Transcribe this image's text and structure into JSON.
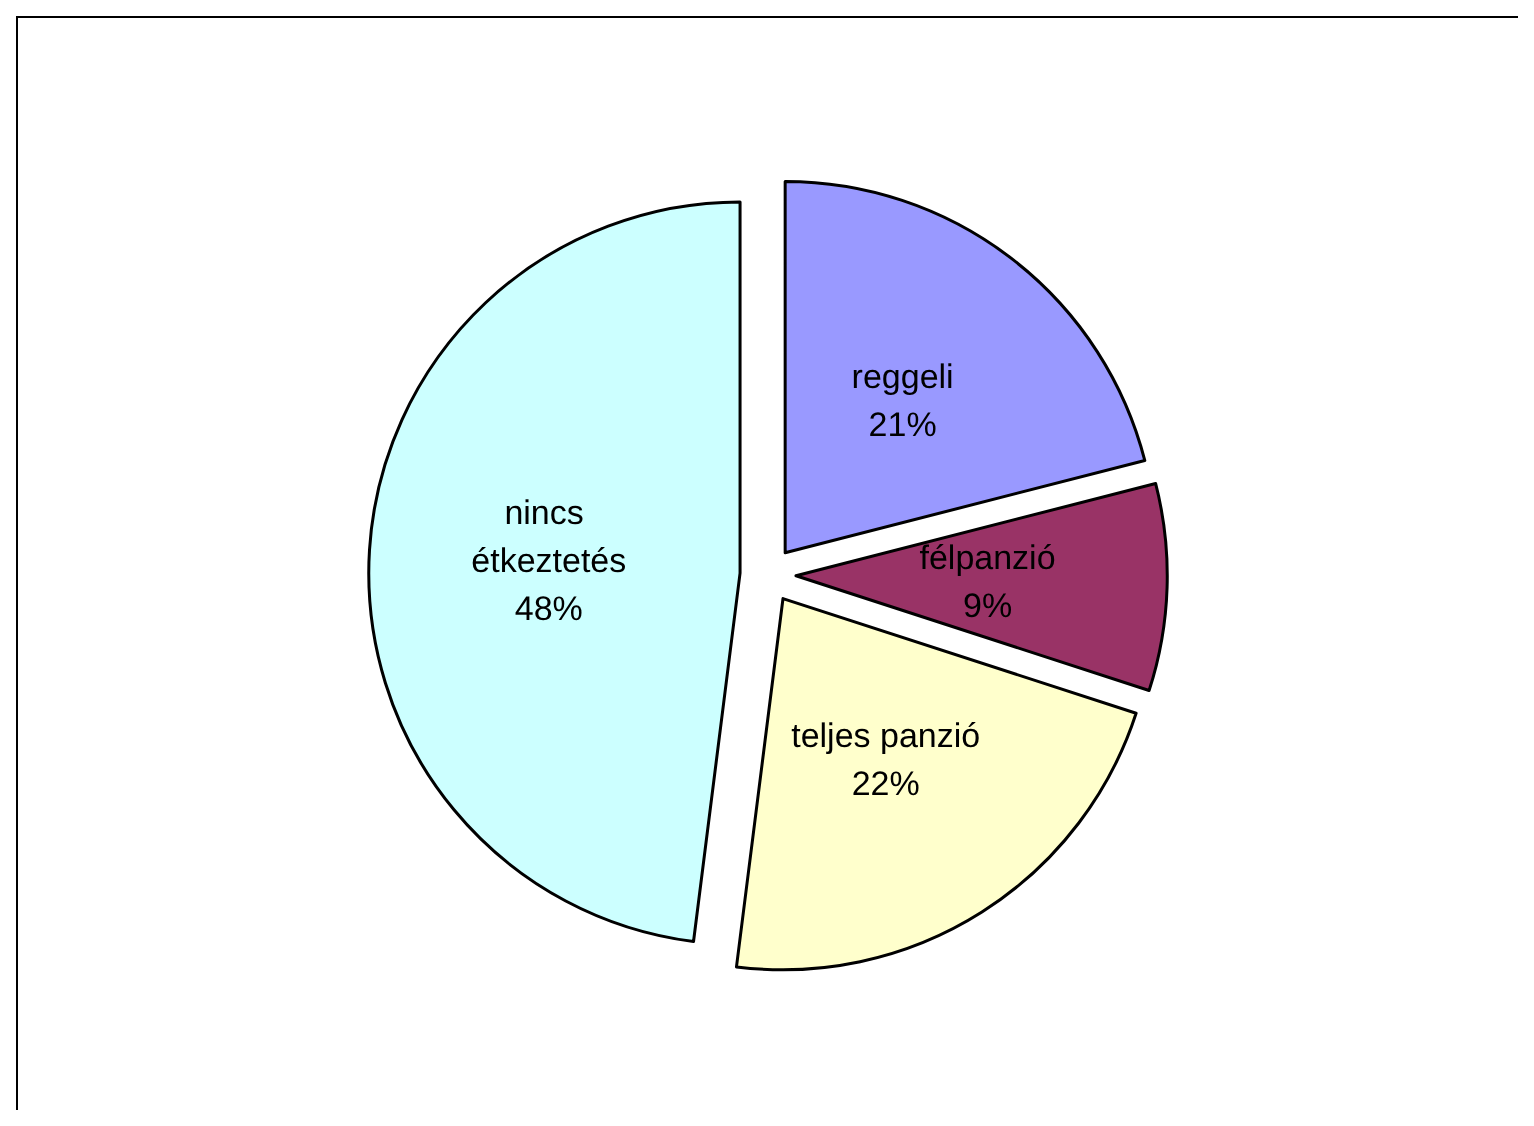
{
  "chart_data": {
    "type": "pie",
    "categories": [
      "reggeli",
      "félpanzió",
      "teljes panzió",
      "nincs étkeztetés"
    ],
    "values": [
      21,
      9,
      22,
      48
    ],
    "colors": [
      "#9999ff",
      "#993366",
      "#ffffcc",
      "#ccffff"
    ],
    "value_labels": [
      "21%",
      "9%",
      "22%",
      "48%"
    ],
    "legend": false
  }
}
